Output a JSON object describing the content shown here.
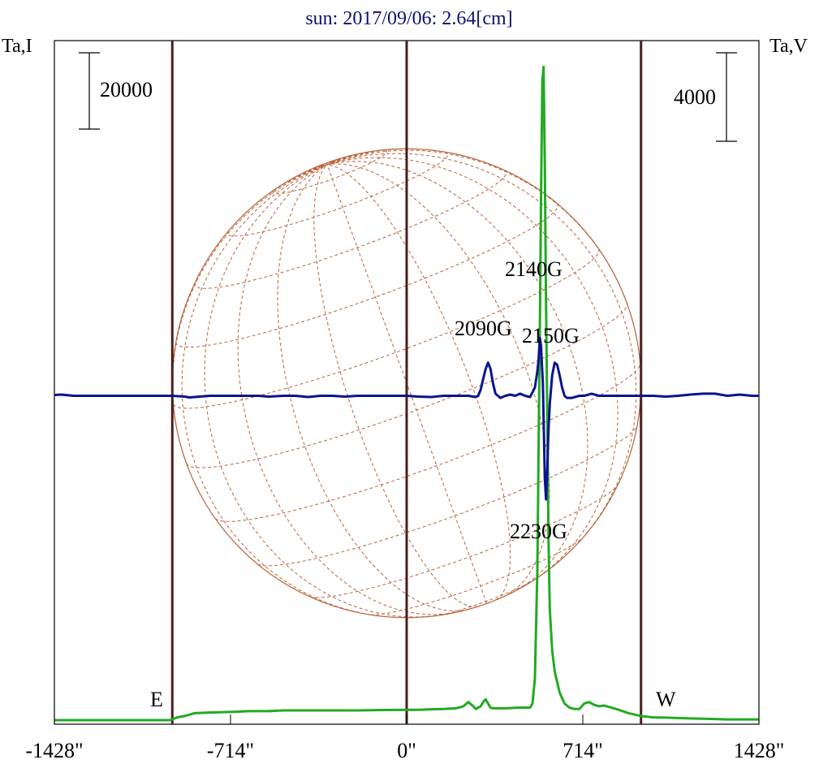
{
  "chart_data": {
    "type": "line",
    "title": "sun: 2017/09/06: 2.64[cm]",
    "left_axis_label": "Ta,I",
    "right_axis_label": "Ta,V",
    "x_ticks": [
      {
        "value": -1428,
        "label": "-1428\""
      },
      {
        "value": -714,
        "label": "-714\""
      },
      {
        "value": 0,
        "label": "0\""
      },
      {
        "value": 714,
        "label": "714\""
      },
      {
        "value": 1428,
        "label": "1428\""
      }
    ],
    "xlim": [
      -1428,
      1428
    ],
    "scale_bar_left": {
      "label": "20000",
      "value": 20000
    },
    "scale_bar_right": {
      "label": "4000",
      "value": 4000
    },
    "limb_labels": {
      "east": "E",
      "west": "W"
    },
    "reference_lines": [
      -950,
      0,
      950
    ],
    "solar_disk": {
      "radius": 950,
      "center": 0
    },
    "annotations": [
      {
        "label": "2140G",
        "x": 550
      },
      {
        "label": "2090G",
        "x": 330
      },
      {
        "label": "2150G",
        "x": 600
      },
      {
        "label": "2230G",
        "x": 560
      }
    ],
    "series": [
      {
        "name": "Ta,I",
        "color": "#22aa22",
        "x": [
          -1428,
          -1200,
          -960,
          -930,
          -900,
          -860,
          -800,
          -700,
          -640,
          -600,
          -560,
          -500,
          -400,
          -300,
          -200,
          -100,
          0,
          50,
          100,
          150,
          200,
          230,
          250,
          270,
          280,
          300,
          310,
          320,
          330,
          340,
          350,
          370,
          400,
          450,
          500,
          510,
          520,
          530,
          535,
          540,
          545,
          550,
          555,
          560,
          565,
          570,
          575,
          580,
          590,
          600,
          620,
          640,
          660,
          680,
          700,
          720,
          740,
          760,
          780,
          800,
          820,
          850,
          900,
          950,
          1000,
          1050,
          1100,
          1150,
          1200,
          1250,
          1300,
          1350,
          1428
        ],
        "y": [
          0,
          0,
          0,
          2,
          3,
          5,
          5.5,
          6,
          6.5,
          6.5,
          6.5,
          7,
          7,
          7,
          7,
          7.3,
          7.5,
          7.5,
          7.8,
          8,
          8.5,
          10,
          13,
          10,
          8,
          10,
          13,
          15,
          12,
          9,
          8.5,
          8.5,
          8.5,
          9,
          9,
          12,
          30,
          110,
          200,
          280,
          380,
          460,
          470,
          400,
          300,
          220,
          130,
          80,
          50,
          35,
          20,
          12,
          9,
          8,
          8,
          12,
          13,
          11,
          10,
          10.5,
          9.5,
          8,
          5,
          3,
          2,
          1.8,
          1.5,
          1.2,
          1,
          0.8,
          0.5,
          0.5,
          0.5
        ]
      },
      {
        "name": "Ta,V",
        "color": "#0a1490",
        "x": [
          -1428,
          -1400,
          -1350,
          -1300,
          -1200,
          -1100,
          -1000,
          -950,
          -900,
          -880,
          -860,
          -840,
          -800,
          -700,
          -650,
          -600,
          -560,
          -500,
          -450,
          -400,
          -350,
          -300,
          -250,
          -200,
          -100,
          -50,
          0,
          50,
          100,
          150,
          200,
          250,
          280,
          290,
          300,
          310,
          320,
          330,
          340,
          350,
          360,
          380,
          400,
          420,
          440,
          460,
          480,
          500,
          520,
          530,
          535,
          540,
          545,
          548,
          552,
          556,
          560,
          565,
          570,
          575,
          580,
          590,
          600,
          610,
          620,
          630,
          640,
          650,
          670,
          700,
          720,
          750,
          780,
          800,
          850,
          900,
          950,
          1000,
          1050,
          1100,
          1150,
          1200,
          1250,
          1300,
          1350,
          1400,
          1428
        ],
        "y": [
          0.2,
          0.3,
          0,
          0,
          0,
          0,
          0,
          0,
          -0.2,
          -0.4,
          -0.3,
          -0.2,
          0,
          0,
          0,
          0,
          -0.2,
          0,
          0,
          -0.3,
          0,
          0,
          -0.2,
          0,
          0,
          0,
          0,
          -0.2,
          -0.3,
          0,
          0,
          0,
          -0.3,
          0,
          1.5,
          4,
          6.5,
          8,
          6.5,
          3,
          0.5,
          -0.5,
          0,
          0.3,
          0,
          0.5,
          0,
          -0.3,
          2,
          6,
          9,
          14,
          12,
          8,
          3,
          -8,
          -20,
          -25,
          -18,
          -8,
          -2,
          5,
          8,
          7.5,
          5,
          2,
          0,
          -0.5,
          -0.5,
          0,
          0,
          0.5,
          0,
          0,
          0,
          0,
          0,
          0,
          -0.2,
          0,
          0.3,
          0.5,
          0.5,
          0,
          0.3,
          0,
          0
        ]
      }
    ]
  }
}
